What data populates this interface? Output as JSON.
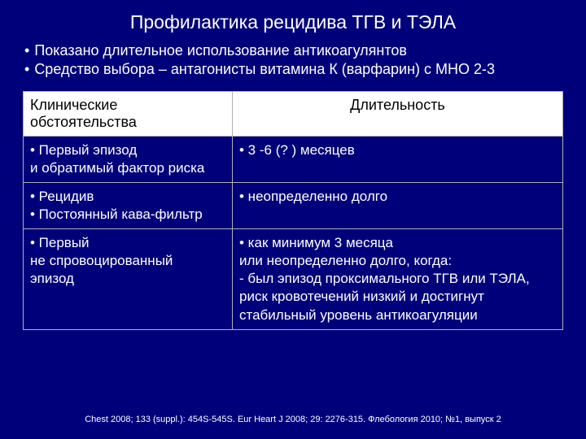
{
  "colors": {
    "background": "#00007b",
    "text": "#ffffff",
    "header_bg": "#ffffff",
    "header_text": "#000000",
    "border": "#b0b0b0"
  },
  "title": "Профилактика рецидива ТГВ и ТЭЛА",
  "intro": [
    "Показано длительное использование антикоагулянтов",
    "Средство выбора – антагонисты витамина К (варфарин) с МНО 2-3"
  ],
  "table": {
    "headers": {
      "left": "Клинические обстоятельства",
      "right": "Длительность"
    },
    "rows": [
      {
        "left": [
          "• Первый эпизод",
          "и обратимый фактор риска"
        ],
        "right": [
          "• 3 -6 (? ) месяцев"
        ]
      },
      {
        "left": [
          "• Рецидив",
          "• Постоянный кава-фильтр"
        ],
        "right": [
          "• неопределенно долго"
        ]
      },
      {
        "left": [
          "• Первый",
          "не спровоцированный",
          "эпизод"
        ],
        "right": [
          "• как минимум 3 месяца",
          "или неопределенно долго, когда:",
          "- был эпизод проксимального ТГВ или ТЭЛА,",
          "риск кровотечений низкий и достигнут",
          "стабильный уровень антикоагуляции"
        ]
      }
    ]
  },
  "citation": "Chest 2008; 133 (suppl.): 454S-545S. Eur Heart J 2008; 29: 2276-315. Флебология 2010; №1, выпуск 2"
}
